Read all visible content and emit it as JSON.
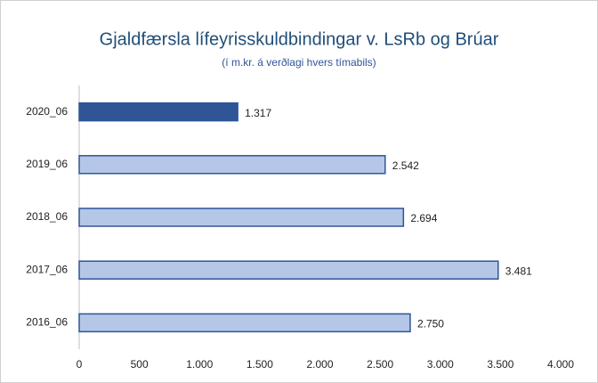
{
  "chart_data": {
    "type": "barh",
    "title": "Gjaldfærsla lífeyrisskuldbindingar v. LsRb og Brúar",
    "subtitle": "(í m.kr. á verðlagi hvers tímabils)",
    "categories": [
      "2020_06",
      "2019_06",
      "2018_06",
      "2017_06",
      "2016_06"
    ],
    "values": [
      1317,
      2542,
      2694,
      3481,
      2750
    ],
    "value_labels": [
      "1.317",
      "2.542",
      "2.694",
      "3.481",
      "2.750"
    ],
    "colors": [
      "#2f5597",
      "#b4c7e7",
      "#b4c7e7",
      "#b4c7e7",
      "#b4c7e7"
    ],
    "edgecolor": "#2f5597",
    "xlim": [
      0,
      4000
    ],
    "xticks": [
      0,
      500,
      {
        "value": 1000,
        "label": "1.000"
      },
      {
        "value": 1500,
        "label": "1.500"
      },
      {
        "value": 2000,
        "label": "2.000"
      },
      {
        "value": 2500,
        "label": "2.500"
      },
      {
        "value": 3000,
        "label": "3.000"
      },
      {
        "value": 3500,
        "label": "3.500"
      },
      {
        "value": 4000,
        "label": "4.000"
      }
    ],
    "grid": false
  }
}
